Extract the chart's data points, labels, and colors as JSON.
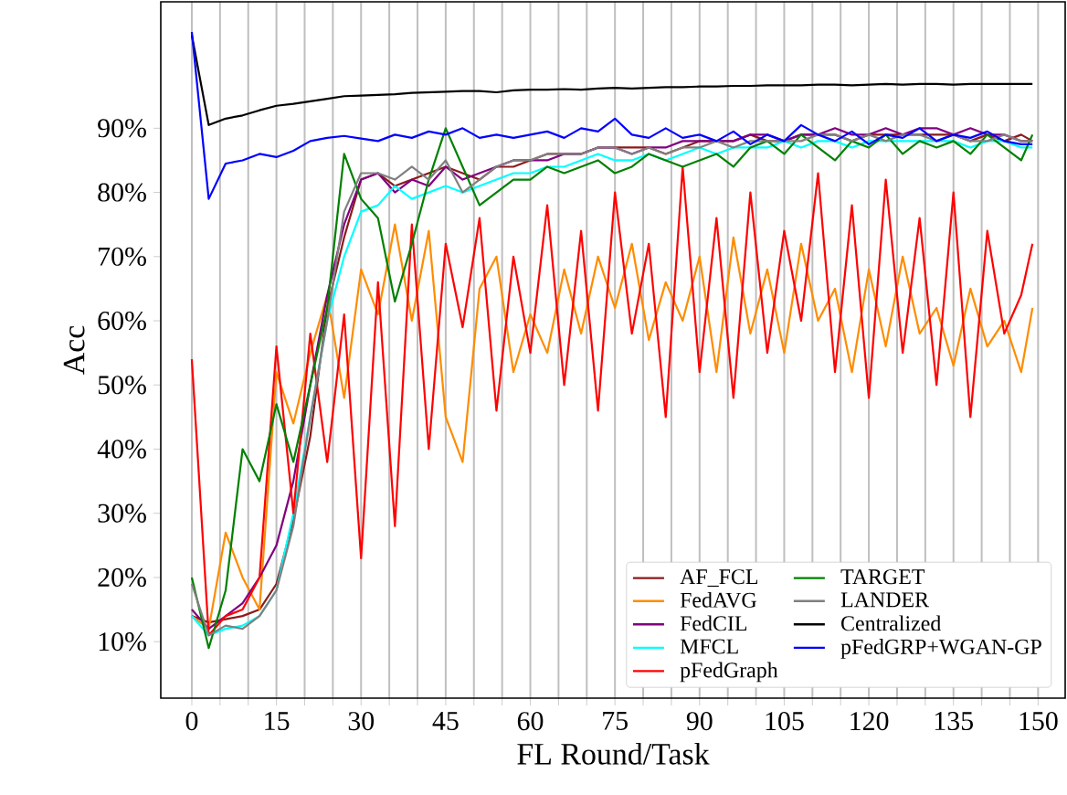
{
  "chart_data": {
    "type": "line",
    "xlabel": "FL Round/Task",
    "ylabel": "Acc",
    "x": [
      0,
      3,
      6,
      9,
      12,
      15,
      18,
      21,
      24,
      27,
      30,
      33,
      36,
      39,
      42,
      45,
      48,
      51,
      54,
      57,
      60,
      63,
      66,
      69,
      72,
      75,
      78,
      81,
      84,
      87,
      90,
      93,
      96,
      99,
      102,
      105,
      108,
      111,
      114,
      117,
      120,
      123,
      126,
      129,
      132,
      135,
      138,
      141,
      144,
      147,
      149
    ],
    "xlim": [
      -5.5,
      154.8
    ],
    "ylim": [
      1.2,
      109.7
    ],
    "xticks": [
      0,
      {
        "value": 5,
        "label": null
      },
      {
        "value": 10,
        "label": null
      },
      15,
      {
        "value": 20,
        "label": null
      },
      {
        "value": 25,
        "label": null
      },
      30,
      {
        "value": 35,
        "label": null
      },
      {
        "value": 40,
        "label": null
      },
      45,
      {
        "value": 50,
        "label": null
      },
      {
        "value": 55,
        "label": null
      },
      60,
      {
        "value": 65,
        "label": null
      },
      {
        "value": 70,
        "label": null
      },
      75,
      {
        "value": 80,
        "label": null
      },
      {
        "value": 85,
        "label": null
      },
      90,
      {
        "value": 95,
        "label": null
      },
      {
        "value": 100,
        "label": null
      },
      105,
      {
        "value": 110,
        "label": null
      },
      {
        "value": 115,
        "label": null
      },
      120,
      {
        "value": 125,
        "label": null
      },
      {
        "value": 130,
        "label": null
      },
      135,
      {
        "value": 140,
        "label": null
      },
      {
        "value": 145,
        "label": null
      },
      150
    ],
    "yticks": [
      {
        "value": 10,
        "label": "10%"
      },
      {
        "value": 20,
        "label": "20%"
      },
      {
        "value": 30,
        "label": "30%"
      },
      {
        "value": 40,
        "label": "40%"
      },
      {
        "value": 50,
        "label": "50%"
      },
      {
        "value": 60,
        "label": "60%"
      },
      {
        "value": 70,
        "label": "70%"
      },
      {
        "value": 80,
        "label": "80%"
      },
      {
        "value": 90,
        "label": "90%"
      }
    ],
    "grid": "x",
    "legend": "bottom right",
    "series": [
      {
        "name": "AF_FCL",
        "color": "#8b1a1a",
        "values": [
          14,
          13,
          13.5,
          14,
          15,
          19,
          29,
          42,
          62,
          73,
          82,
          83,
          81,
          82,
          83,
          84,
          83,
          82,
          84,
          84,
          85,
          86,
          86,
          86,
          87,
          87,
          87,
          87,
          86,
          87,
          88,
          88,
          88,
          89,
          88,
          88,
          89,
          89,
          89,
          88,
          89,
          89,
          89,
          89,
          89,
          89,
          88,
          89,
          88,
          89,
          88
        ]
      },
      {
        "name": "FedAVG",
        "color": "#ff8c00",
        "values": [
          14,
          12,
          27,
          20,
          15,
          52,
          44,
          55,
          64,
          48,
          68,
          61,
          75,
          60,
          74,
          45,
          38,
          65,
          70,
          52,
          61,
          55,
          68,
          58,
          70,
          62,
          72,
          57,
          66,
          60,
          70,
          52,
          73,
          58,
          68,
          55,
          72,
          60,
          65,
          52,
          68,
          56,
          70,
          58,
          62,
          53,
          65,
          56,
          60,
          52,
          62
        ]
      },
      {
        "name": "FedCIL",
        "color": "#800080",
        "values": [
          15,
          12,
          14,
          16,
          20,
          25,
          35,
          50,
          64,
          75,
          82,
          83,
          80,
          82,
          81,
          84,
          82,
          83,
          84,
          85,
          85,
          85,
          86,
          86,
          87,
          87,
          86,
          87,
          87,
          88,
          88,
          88,
          88,
          89,
          89,
          88,
          89,
          89,
          90,
          89,
          89,
          90,
          89,
          90,
          90,
          89,
          90,
          89,
          89,
          88,
          88
        ]
      },
      {
        "name": "MFCL",
        "color": "#00ffff",
        "values": [
          14,
          11,
          12,
          12.5,
          14,
          18,
          30,
          45,
          60,
          70,
          77,
          78,
          81,
          79,
          80,
          81,
          80,
          81,
          82,
          83,
          83,
          84,
          84,
          85,
          86,
          85,
          85,
          86,
          85,
          86,
          87,
          86,
          87,
          87,
          87,
          88,
          87,
          88,
          88,
          87,
          88,
          88,
          88,
          88,
          88,
          88,
          87,
          88,
          88,
          87,
          87
        ]
      },
      {
        "name": "pFedGraph",
        "color": "#ff0000",
        "values": [
          54,
          11,
          14,
          15,
          20,
          56,
          30,
          58,
          38,
          61,
          23,
          66,
          28,
          75,
          40,
          72,
          59,
          76,
          46,
          70,
          55,
          78,
          50,
          74,
          46,
          80,
          58,
          72,
          45,
          84,
          52,
          76,
          48,
          80,
          55,
          74,
          60,
          83,
          52,
          78,
          48,
          82,
          55,
          76,
          50,
          80,
          45,
          74,
          58,
          64,
          72
        ]
      },
      {
        "name": "TARGET",
        "color": "#008000",
        "values": [
          20,
          9,
          18,
          40,
          35,
          47,
          38,
          50,
          62,
          86,
          79,
          76,
          63,
          72,
          82,
          90,
          84,
          78,
          80,
          82,
          82,
          84,
          83,
          84,
          85,
          83,
          84,
          86,
          85,
          84,
          85,
          86,
          84,
          87,
          88,
          86,
          89,
          87,
          85,
          88,
          87,
          89,
          86,
          88,
          87,
          88,
          86,
          89,
          87,
          85,
          89
        ]
      },
      {
        "name": "LANDER",
        "color": "#808080",
        "values": [
          19,
          11,
          12.5,
          12,
          14,
          18,
          28,
          45,
          60,
          77,
          83,
          83,
          82,
          84,
          82,
          85,
          80,
          82,
          84,
          85,
          85,
          86,
          86,
          86,
          87,
          87,
          86,
          87,
          86,
          87,
          87,
          88,
          87,
          88,
          88,
          88,
          88,
          89,
          89,
          88,
          89,
          88,
          89,
          89,
          88,
          89,
          88,
          88,
          89,
          88,
          88
        ]
      },
      {
        "name": "Centralized",
        "color": "#000000",
        "values": [
          104.5,
          90.5,
          91.5,
          92,
          92.8,
          93.5,
          93.8,
          94.2,
          94.6,
          95,
          95.1,
          95.2,
          95.3,
          95.5,
          95.6,
          95.7,
          95.8,
          95.8,
          95.6,
          95.9,
          96,
          96,
          96.1,
          96,
          96.2,
          96.3,
          96.2,
          96.3,
          96.4,
          96.4,
          96.5,
          96.5,
          96.6,
          96.6,
          96.7,
          96.7,
          96.7,
          96.8,
          96.8,
          96.7,
          96.8,
          96.9,
          96.8,
          96.9,
          96.9,
          96.8,
          96.9,
          96.9,
          96.9,
          96.9,
          96.9
        ]
      },
      {
        "name": "pFedGRP+WGAN-GP",
        "color": "#0000ff",
        "values": [
          105,
          79,
          84.5,
          85,
          86,
          85.5,
          86.5,
          88,
          88.5,
          88.8,
          88.4,
          88,
          89,
          88.5,
          89.5,
          89,
          90,
          88.5,
          89,
          88.5,
          89,
          89.5,
          88.5,
          90,
          89.5,
          91.5,
          89,
          88.5,
          90,
          88.5,
          89,
          88,
          89.5,
          87.5,
          89,
          88,
          90.5,
          89,
          88,
          89.5,
          87.5,
          89,
          88.5,
          90,
          88,
          89,
          88.5,
          89.5,
          88,
          87.5,
          87.5
        ]
      }
    ]
  }
}
